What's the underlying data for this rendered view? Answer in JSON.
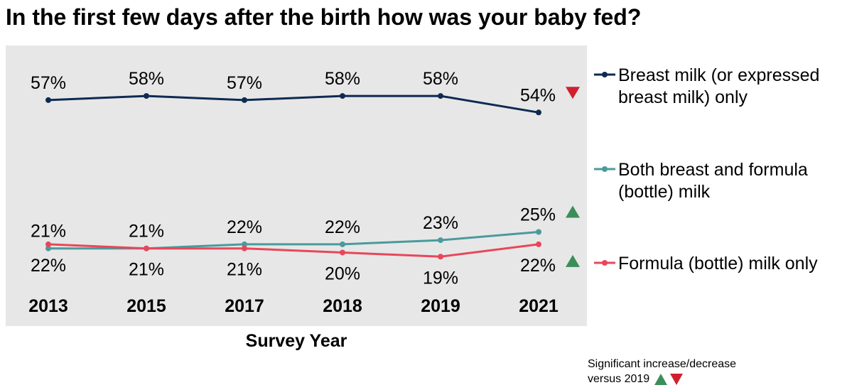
{
  "title": "In the first few days after the birth how was your baby fed?",
  "footnote": {
    "line1": "Significant increase/decrease",
    "line2": "versus 2019"
  },
  "colors": {
    "plot_background": "#e7e7e7",
    "breast": "#0d2a52",
    "both": "#4b9a9c",
    "formula": "#e8475a",
    "increase": "#3a8e5a",
    "decrease": "#d0202e"
  },
  "chart_data": {
    "type": "line",
    "title": "In the first few days after the birth how was your baby fed?",
    "xlabel": "Survey Year",
    "ylabel": "",
    "categories": [
      "2013",
      "2015",
      "2017",
      "2018",
      "2019",
      "2021"
    ],
    "ylim": [
      0,
      100
    ],
    "grid": false,
    "legend_position": "right",
    "series": [
      {
        "name": "Breast milk (or expressed breast milk) only",
        "legend_lines": [
          "Breast milk (or expressed",
          "breast milk) only"
        ],
        "color": "#0d2a52",
        "values": [
          57,
          58,
          57,
          58,
          58,
          54
        ],
        "labels": [
          "57%",
          "58%",
          "57%",
          "58%",
          "58%",
          "54%"
        ],
        "label_position": "above",
        "change_vs_2019": "decrease"
      },
      {
        "name": "Both breast and formula (bottle) milk",
        "legend_lines": [
          "Both breast and formula",
          "(bottle) milk"
        ],
        "color": "#4b9a9c",
        "values": [
          21,
          21,
          22,
          22,
          23,
          25
        ],
        "labels": [
          "21%",
          "21%",
          "22%",
          "22%",
          "23%",
          "25%"
        ],
        "label_position": "above",
        "change_vs_2019": "increase"
      },
      {
        "name": "Formula (bottle) milk only",
        "legend_lines": [
          "Formula (bottle) milk only"
        ],
        "color": "#e8475a",
        "values": [
          22,
          21,
          21,
          20,
          19,
          22
        ],
        "labels": [
          "22%",
          "21%",
          "21%",
          "20%",
          "19%",
          "22%"
        ],
        "label_position": "below",
        "change_vs_2019": "increase"
      }
    ]
  }
}
